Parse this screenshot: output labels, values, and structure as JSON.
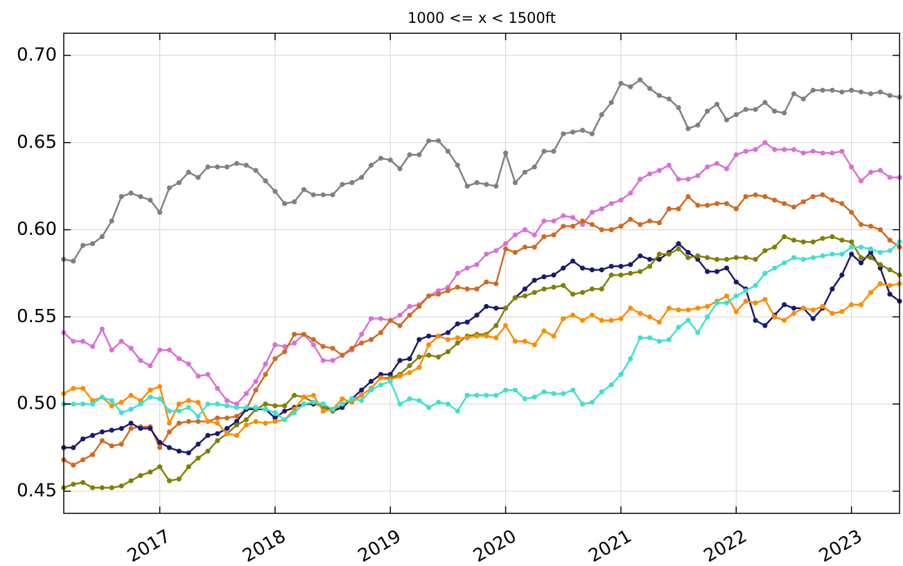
{
  "chart_data": {
    "type": "line",
    "title": "1000 <= x < 1500ft",
    "x": [
      2016.167,
      2016.25,
      2016.333,
      2016.417,
      2016.5,
      2016.583,
      2016.667,
      2016.75,
      2016.833,
      2016.917,
      2017,
      2017.083,
      2017.167,
      2017.25,
      2017.333,
      2017.417,
      2017.5,
      2017.583,
      2017.667,
      2017.75,
      2017.833,
      2017.917,
      2018,
      2018.083,
      2018.167,
      2018.25,
      2018.333,
      2018.417,
      2018.5,
      2018.583,
      2018.667,
      2018.75,
      2018.833,
      2018.917,
      2019,
      2019.083,
      2019.167,
      2019.25,
      2019.333,
      2019.417,
      2019.5,
      2019.583,
      2019.667,
      2019.75,
      2019.833,
      2019.917,
      2020,
      2020.083,
      2020.167,
      2020.25,
      2020.333,
      2020.417,
      2020.5,
      2020.583,
      2020.667,
      2020.75,
      2020.833,
      2020.917,
      2021,
      2021.083,
      2021.167,
      2021.25,
      2021.333,
      2021.417,
      2021.5,
      2021.583,
      2021.667,
      2021.75,
      2021.833,
      2021.917,
      2022,
      2022.083,
      2022.167,
      2022.25,
      2022.333,
      2022.417,
      2022.5,
      2022.583,
      2022.667,
      2022.75,
      2022.833,
      2022.917,
      2023,
      2023.083,
      2023.167,
      2023.25,
      2023.333,
      2023.417
    ],
    "series": [
      {
        "color": "#808080",
        "values": [
          0.583,
          0.582,
          0.591,
          0.592,
          0.596,
          0.605,
          0.619,
          0.621,
          0.619,
          0.617,
          0.61,
          0.624,
          0.627,
          0.633,
          0.63,
          0.636,
          0.636,
          0.636,
          0.638,
          0.637,
          0.634,
          0.628,
          0.622,
          0.615,
          0.616,
          0.623,
          0.62,
          0.62,
          0.62,
          0.626,
          0.627,
          0.63,
          0.637,
          0.641,
          0.64,
          0.635,
          0.643,
          0.643,
          0.651,
          0.651,
          0.645,
          0.637,
          0.625,
          0.627,
          0.626,
          0.625,
          0.644,
          0.627,
          0.633,
          0.636,
          0.645,
          0.645,
          0.655,
          0.656,
          0.657,
          0.655,
          0.666,
          0.673,
          0.684,
          0.682,
          0.686,
          0.681,
          0.677,
          0.675,
          0.67,
          0.658,
          0.66,
          0.668,
          0.672,
          0.663,
          0.666,
          0.669,
          0.669,
          0.673,
          0.668,
          0.667,
          0.678,
          0.675,
          0.68,
          0.68,
          0.68,
          0.679,
          0.68,
          0.679,
          0.678,
          0.679,
          0.677,
          0.676
        ]
      },
      {
        "color": "#da70d6",
        "values": [
          0.541,
          0.536,
          0.536,
          0.533,
          0.543,
          0.531,
          0.536,
          0.532,
          0.525,
          0.522,
          0.531,
          0.531,
          0.526,
          0.523,
          0.516,
          0.517,
          0.509,
          0.502,
          0.5,
          0.506,
          0.513,
          0.523,
          0.534,
          0.533,
          0.535,
          0.54,
          0.534,
          0.525,
          0.525,
          0.528,
          0.531,
          0.54,
          0.549,
          0.549,
          0.548,
          0.551,
          0.556,
          0.557,
          0.562,
          0.565,
          0.567,
          0.575,
          0.578,
          0.58,
          0.586,
          0.588,
          0.592,
          0.597,
          0.6,
          0.597,
          0.605,
          0.605,
          0.608,
          0.607,
          0.603,
          0.61,
          0.612,
          0.615,
          0.617,
          0.621,
          0.629,
          0.632,
          0.634,
          0.637,
          0.629,
          0.629,
          0.631,
          0.636,
          0.638,
          0.635,
          0.643,
          0.645,
          0.646,
          0.65,
          0.646,
          0.646,
          0.646,
          0.644,
          0.645,
          0.644,
          0.644,
          0.645,
          0.636,
          0.628,
          0.633,
          0.634,
          0.63,
          0.63
        ]
      },
      {
        "color": "#d2691e",
        "values": [
          0.468,
          0.465,
          0.468,
          0.471,
          0.479,
          0.476,
          0.477,
          0.486,
          0.487,
          0.487,
          0.475,
          0.484,
          0.489,
          0.49,
          0.49,
          0.49,
          0.492,
          0.492,
          0.493,
          0.497,
          0.508,
          0.517,
          0.526,
          0.53,
          0.54,
          0.54,
          0.537,
          0.533,
          0.532,
          0.528,
          0.532,
          0.535,
          0.537,
          0.541,
          0.548,
          0.545,
          0.551,
          0.556,
          0.562,
          0.563,
          0.565,
          0.567,
          0.566,
          0.566,
          0.57,
          0.569,
          0.589,
          0.587,
          0.59,
          0.59,
          0.596,
          0.597,
          0.602,
          0.602,
          0.605,
          0.603,
          0.6,
          0.6,
          0.602,
          0.606,
          0.603,
          0.605,
          0.604,
          0.612,
          0.612,
          0.619,
          0.614,
          0.614,
          0.615,
          0.615,
          0.612,
          0.619,
          0.62,
          0.619,
          0.617,
          0.615,
          0.613,
          0.616,
          0.619,
          0.62,
          0.617,
          0.615,
          0.61,
          0.603,
          0.602,
          0.6,
          0.594,
          0.59
        ]
      },
      {
        "color": "#191970",
        "values": [
          0.475,
          0.475,
          0.48,
          0.482,
          0.484,
          0.485,
          0.486,
          0.489,
          0.486,
          0.486,
          0.478,
          0.475,
          0.473,
          0.472,
          0.477,
          0.482,
          0.483,
          0.486,
          0.49,
          0.497,
          0.497,
          0.497,
          0.492,
          0.496,
          0.498,
          0.5,
          0.5,
          0.5,
          0.496,
          0.498,
          0.503,
          0.508,
          0.513,
          0.517,
          0.517,
          0.525,
          0.526,
          0.537,
          0.539,
          0.539,
          0.541,
          0.546,
          0.547,
          0.551,
          0.556,
          0.555,
          0.555,
          0.561,
          0.566,
          0.571,
          0.573,
          0.574,
          0.578,
          0.582,
          0.578,
          0.577,
          0.577,
          0.579,
          0.579,
          0.58,
          0.585,
          0.583,
          0.583,
          0.587,
          0.592,
          0.587,
          0.583,
          0.576,
          0.576,
          0.578,
          0.57,
          0.566,
          0.548,
          0.545,
          0.551,
          0.557,
          0.555,
          0.555,
          0.549,
          0.555,
          0.566,
          0.574,
          0.586,
          0.581,
          0.587,
          0.578,
          0.563,
          0.559
        ]
      },
      {
        "color": "#808000",
        "values": [
          0.452,
          0.454,
          0.455,
          0.452,
          0.452,
          0.452,
          0.453,
          0.456,
          0.459,
          0.461,
          0.464,
          0.456,
          0.457,
          0.464,
          0.469,
          0.473,
          0.479,
          0.483,
          0.488,
          0.491,
          0.497,
          0.5,
          0.499,
          0.499,
          0.505,
          0.504,
          0.501,
          0.498,
          0.496,
          0.5,
          0.502,
          0.505,
          0.509,
          0.515,
          0.515,
          0.517,
          0.522,
          0.527,
          0.528,
          0.527,
          0.53,
          0.535,
          0.539,
          0.54,
          0.54,
          0.545,
          0.555,
          0.561,
          0.562,
          0.564,
          0.566,
          0.567,
          0.568,
          0.563,
          0.564,
          0.566,
          0.566,
          0.574,
          0.574,
          0.575,
          0.576,
          0.579,
          0.586,
          0.586,
          0.589,
          0.584,
          0.585,
          0.584,
          0.583,
          0.583,
          0.584,
          0.584,
          0.583,
          0.588,
          0.59,
          0.596,
          0.594,
          0.593,
          0.593,
          0.595,
          0.596,
          0.594,
          0.593,
          0.584,
          0.584,
          0.58,
          0.577,
          0.574
        ]
      },
      {
        "color": "#ff8c00",
        "values": [
          0.506,
          0.509,
          0.509,
          0.502,
          0.504,
          0.499,
          0.501,
          0.505,
          0.502,
          0.508,
          0.51,
          0.489,
          0.5,
          0.502,
          0.501,
          0.49,
          0.489,
          0.483,
          0.482,
          0.488,
          0.49,
          0.489,
          0.49,
          0.491,
          0.497,
          0.504,
          0.505,
          0.496,
          0.497,
          0.503,
          0.501,
          0.505,
          0.509,
          0.515,
          0.514,
          0.516,
          0.518,
          0.521,
          0.534,
          0.539,
          0.537,
          0.538,
          0.538,
          0.539,
          0.539,
          0.538,
          0.545,
          0.536,
          0.536,
          0.534,
          0.542,
          0.539,
          0.549,
          0.551,
          0.548,
          0.551,
          0.548,
          0.548,
          0.549,
          0.555,
          0.552,
          0.55,
          0.547,
          0.555,
          0.554,
          0.554,
          0.555,
          0.556,
          0.559,
          0.562,
          0.553,
          0.559,
          0.558,
          0.56,
          0.55,
          0.548,
          0.552,
          0.555,
          0.554,
          0.556,
          0.552,
          0.553,
          0.557,
          0.557,
          0.564,
          0.569,
          0.568,
          0.569
        ]
      },
      {
        "color": "#40e0d0",
        "values": [
          0.5,
          0.5,
          0.5,
          0.5,
          0.504,
          0.502,
          0.495,
          0.497,
          0.5,
          0.504,
          0.503,
          0.496,
          0.496,
          0.498,
          0.493,
          0.5,
          0.5,
          0.499,
          0.498,
          0.498,
          0.498,
          0.497,
          0.495,
          0.491,
          0.495,
          0.5,
          0.501,
          0.5,
          0.497,
          0.5,
          0.503,
          0.502,
          0.508,
          0.511,
          0.513,
          0.5,
          0.503,
          0.502,
          0.498,
          0.501,
          0.5,
          0.496,
          0.505,
          0.505,
          0.505,
          0.505,
          0.508,
          0.508,
          0.503,
          0.504,
          0.507,
          0.506,
          0.506,
          0.508,
          0.5,
          0.501,
          0.507,
          0.511,
          0.517,
          0.526,
          0.538,
          0.538,
          0.536,
          0.537,
          0.544,
          0.548,
          0.541,
          0.55,
          0.558,
          0.558,
          0.562,
          0.565,
          0.568,
          0.575,
          0.578,
          0.581,
          0.584,
          0.583,
          0.584,
          0.585,
          0.586,
          0.586,
          0.59,
          0.59,
          0.589,
          0.587,
          0.588,
          0.593
        ]
      }
    ],
    "xlim": [
      2016.167,
      2023.417
    ],
    "xticks": [
      2017,
      2018,
      2019,
      2020,
      2021,
      2022,
      2023
    ],
    "ylim": [
      0.4373,
      0.7127
    ],
    "yticks": [
      {
        "value": 0.45,
        "label": "0.45"
      },
      {
        "value": 0.5,
        "label": "0.50"
      },
      0.55,
      {
        "value": 0.6,
        "label": "0.60"
      },
      0.65,
      {
        "value": 0.7,
        "label": "0.70"
      }
    ],
    "grid": true
  }
}
